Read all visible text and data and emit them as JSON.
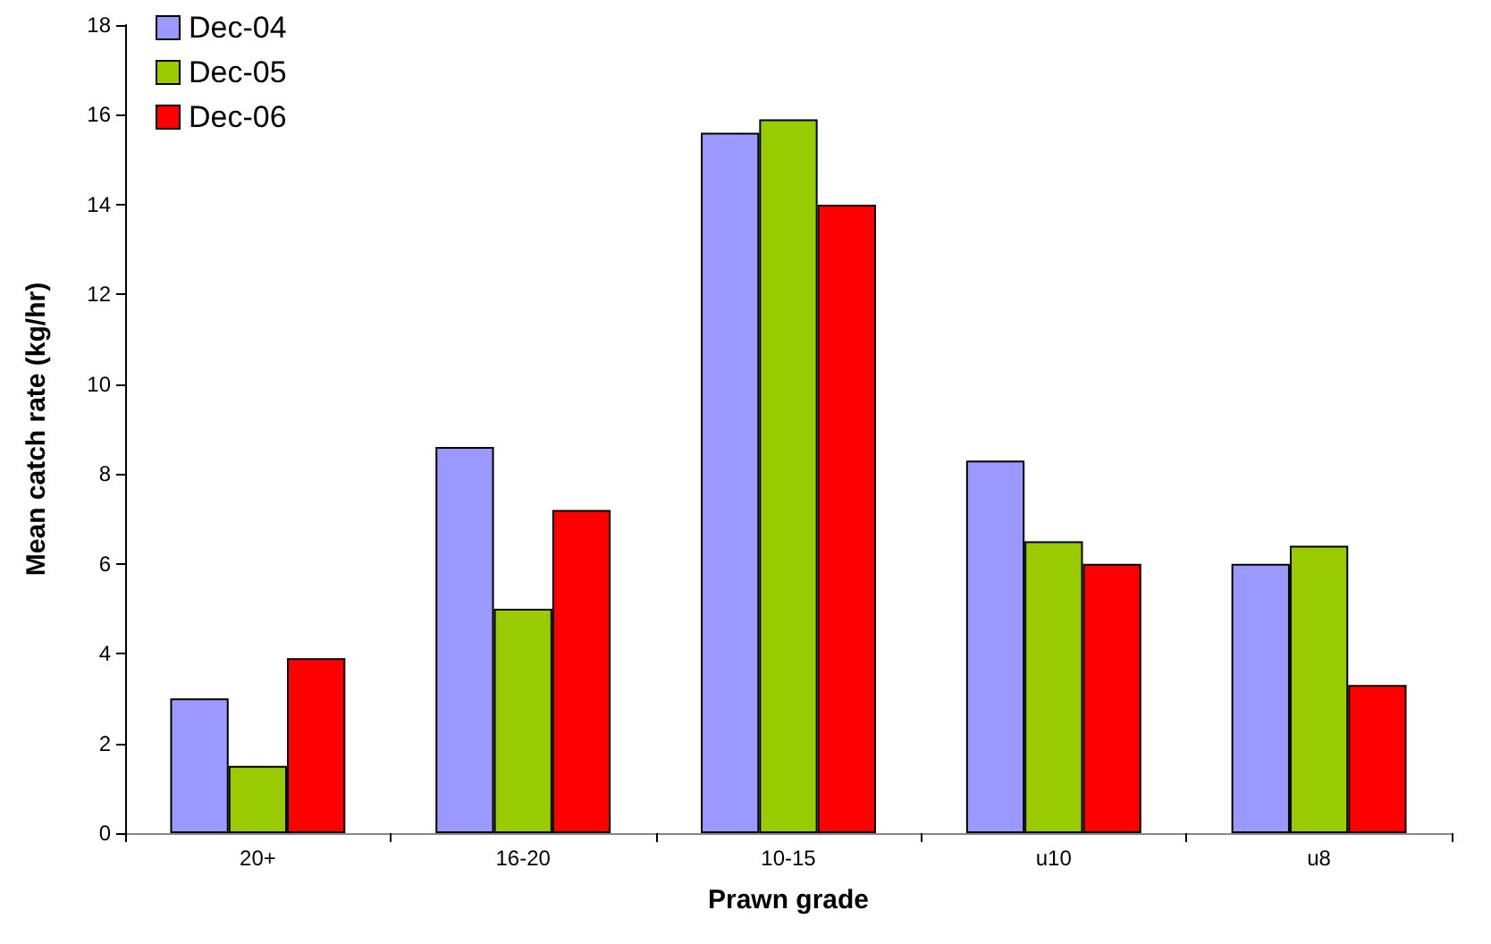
{
  "chart_data": {
    "type": "bar",
    "xlabel": "Prawn grade",
    "ylabel": "Mean catch rate (kg/hr)",
    "categories": [
      "20+",
      "16-20",
      "10-15",
      "u10",
      "u8"
    ],
    "series": [
      {
        "name": "Dec-04",
        "color": "#9999ff",
        "values": [
          3.0,
          8.6,
          15.6,
          8.3,
          6.0
        ]
      },
      {
        "name": "Dec-05",
        "color": "#99cc00",
        "values": [
          1.5,
          5.0,
          15.9,
          6.5,
          6.4
        ]
      },
      {
        "name": "Dec-06",
        "color": "#ff0000",
        "values": [
          3.9,
          7.2,
          14.0,
          6.0,
          3.3
        ]
      }
    ],
    "ylim": [
      0,
      18
    ],
    "yticks": [
      0,
      2,
      4,
      6,
      8,
      10,
      12,
      14,
      16,
      18
    ],
    "grid": false,
    "legend": "top left"
  }
}
